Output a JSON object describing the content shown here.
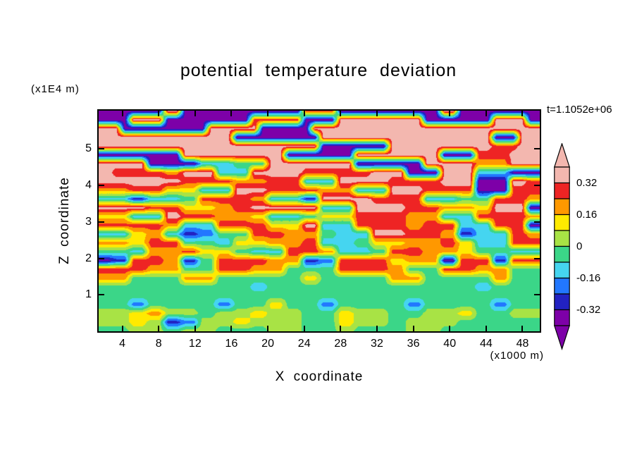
{
  "chart_data": {
    "type": "heatmap",
    "title": "potential temperature deviation",
    "time_annotation": "t=1.1052e+06",
    "xlabel": "X coordinate",
    "x_unit": "(x1000 m)",
    "ylabel": "Z coordinate",
    "y_unit": "(x1E4 m)",
    "x_ticks": [
      4,
      8,
      12,
      16,
      20,
      24,
      28,
      32,
      36,
      40,
      44,
      48
    ],
    "y_ticks": [
      1,
      2,
      3,
      4,
      5
    ],
    "x_range": [
      1.4,
      49.9
    ],
    "y_range": [
      0,
      6.05
    ],
    "grid": "on-frame-ticks-only",
    "legend_position": "right-colorbar",
    "colorbar": {
      "tick_labels": [
        "0.32",
        "0.16",
        "0",
        "-0.16",
        "-0.32"
      ],
      "levels": [
        -0.4,
        -0.32,
        -0.24,
        -0.16,
        -0.08,
        0,
        0.08,
        0.16,
        0.24,
        0.32,
        0.4
      ],
      "palette_low_to_high": [
        "#7d00a8",
        "#2222c2",
        "#2277ff",
        "#45d5f0",
        "#3bd688",
        "#a8e345",
        "#ffea00",
        "#ff9800",
        "#ee2424",
        "#f3b7af"
      ]
    },
    "grid_rows_top_to_bottom": [
      "0000000099000000000000008888000000000000990000000000",
      "0000999900000000008888880000999999999900000000999900",
      "9990000000000999999000000999999999999999999999999999",
      "9999999999999999000000000099999999999999999999000999",
      "9999999999999999999999999900000000999999999999888999",
      "0000000000999999999999000000009999999999000088889999",
      "9999990000003333444499999999990000000099999977779999",
      "9988888877999933339999998888888899990000999933330000",
      "9999999999888888777788883333999999888888999900009988",
      "7777888866663333999988888877773333999988888800008888",
      "3333113333448888887733331199999988888833334444888877",
      "9999998888666677889999999933339999998888777766999900",
      "6666333399888877776633334466668888887777333388888877",
      "8888888877333388888866669933338888887788883333888800",
      "3333667733112244448888777744333399998888771133338877",
      "7777668888444433666677778833334466667777886633338888",
      "4444337777886666443333888877333344888877776644443333",
      "0011888877114488888877771122888888667777008888118888",
      "8888887777444488887777444444888888774444888877774444",
      "7777444444777744444444446644444444777744444444774444",
      "4444444444444444443344444444444444444444444433444444",
      "4444444444444444444444444444444444444444444444444444",
      "4444224444444422444466444422444444442244444444224444",
      "5555667755554455556655554444665555444455556644445555",
      "5555665511225555665555554444665555445555554444444444",
      "4444555544555544444455554444554444445555444444444444"
    ]
  }
}
